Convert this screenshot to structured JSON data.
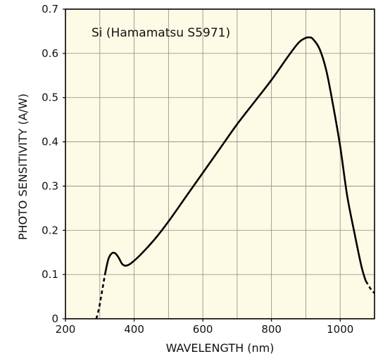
{
  "chart_data": {
    "type": "line",
    "title": "",
    "xlabel": "WAVELENGTH (nm)",
    "ylabel": "PHOTO SENSITIVITY  (A/W)",
    "xlim": [
      200,
      1100
    ],
    "ylim": [
      0,
      0.7
    ],
    "x_ticks": [
      200,
      400,
      600,
      800,
      1000
    ],
    "y_ticks": [
      0,
      0.1,
      0.2,
      0.3,
      0.4,
      0.5,
      0.6,
      0.7
    ],
    "y_tick_labels": [
      "0",
      "0.1",
      "0.2",
      "0.3",
      "0.4",
      "0.5",
      "0.6",
      "0.7"
    ],
    "grid": true,
    "annotation": "Si (Hamamatsu S5971)",
    "background_color": "#fdfbe6",
    "line_color": "#000000",
    "series": [
      {
        "style": "dashed",
        "x": [
          290,
          298,
          306,
          315
        ],
        "y": [
          0.0,
          0.025,
          0.06,
          0.1
        ]
      },
      {
        "style": "solid",
        "x": [
          315,
          325,
          335,
          345,
          355,
          365,
          375,
          390,
          420,
          460,
          500,
          550,
          600,
          650,
          700,
          750,
          800,
          850,
          880,
          900,
          910,
          920,
          940,
          960,
          980,
          1000,
          1020,
          1040,
          1060,
          1070,
          1075
        ],
        "y": [
          0.1,
          0.135,
          0.148,
          0.148,
          0.138,
          0.124,
          0.12,
          0.125,
          0.146,
          0.18,
          0.22,
          0.275,
          0.33,
          0.385,
          0.44,
          0.49,
          0.54,
          0.595,
          0.625,
          0.635,
          0.636,
          0.633,
          0.61,
          0.56,
          0.48,
          0.39,
          0.28,
          0.2,
          0.125,
          0.096,
          0.085
        ]
      },
      {
        "style": "dashed",
        "x": [
          1075,
          1085,
          1092,
          1100
        ],
        "y": [
          0.085,
          0.072,
          0.064,
          0.058
        ]
      }
    ]
  }
}
